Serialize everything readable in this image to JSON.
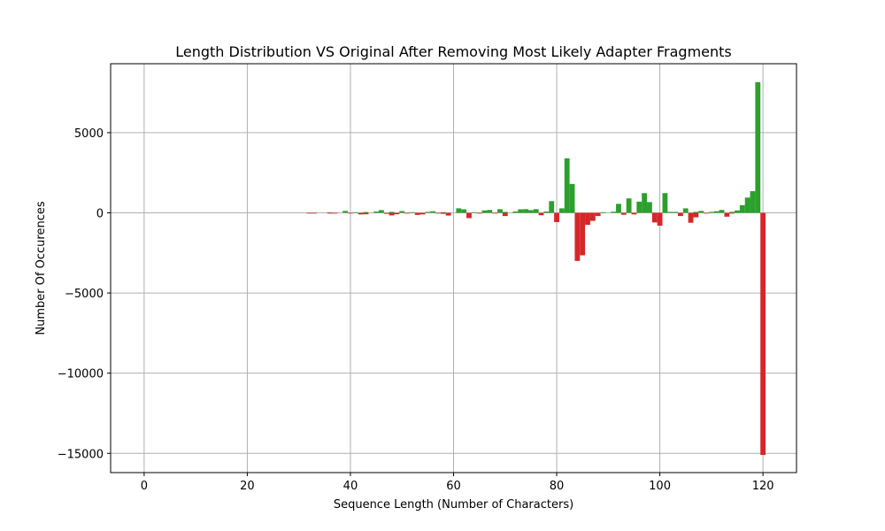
{
  "chart_data": {
    "type": "bar",
    "title": "Length Distribution VS Original After Removing Most Likely Adapter Fragments",
    "xlabel": "Sequence Length (Number of Characters)",
    "ylabel": "Number Of Occurences",
    "xlim": [
      -6.5,
      126.5
    ],
    "ylim": [
      -16200,
      9300
    ],
    "xticks": [
      0,
      20,
      40,
      60,
      80,
      100,
      120
    ],
    "xtick_labels": [
      "0",
      "20",
      "40",
      "60",
      "80",
      "100",
      "120"
    ],
    "yticks": [
      -15000,
      -10000,
      -5000,
      0,
      5000
    ],
    "ytick_labels": [
      "−15000",
      "−10000",
      "−5000",
      "0",
      "5000"
    ],
    "grid": true,
    "bar_width": 1.0,
    "series": [
      {
        "color": "#2ca02c",
        "points": [
          {
            "x": 36,
            "y": 30
          },
          {
            "x": 39,
            "y": 120
          },
          {
            "x": 41,
            "y": 40
          },
          {
            "x": 43,
            "y": 50
          },
          {
            "x": 45,
            "y": 80
          },
          {
            "x": 46,
            "y": 170
          },
          {
            "x": 48,
            "y": 60
          },
          {
            "x": 50,
            "y": 110
          },
          {
            "x": 52,
            "y": 40
          },
          {
            "x": 55,
            "y": 60
          },
          {
            "x": 56,
            "y": 100
          },
          {
            "x": 58,
            "y": 40
          },
          {
            "x": 61,
            "y": 280
          },
          {
            "x": 62,
            "y": 220
          },
          {
            "x": 64,
            "y": 40
          },
          {
            "x": 66,
            "y": 150
          },
          {
            "x": 67,
            "y": 180
          },
          {
            "x": 69,
            "y": 230
          },
          {
            "x": 70,
            "y": 60
          },
          {
            "x": 72,
            "y": 80
          },
          {
            "x": 73,
            "y": 220
          },
          {
            "x": 74,
            "y": 230
          },
          {
            "x": 75,
            "y": 170
          },
          {
            "x": 76,
            "y": 230
          },
          {
            "x": 78,
            "y": 80
          },
          {
            "x": 79,
            "y": 730
          },
          {
            "x": 81,
            "y": 280
          },
          {
            "x": 82,
            "y": 3400
          },
          {
            "x": 83,
            "y": 1800
          },
          {
            "x": 89,
            "y": 40
          },
          {
            "x": 91,
            "y": 70
          },
          {
            "x": 92,
            "y": 560
          },
          {
            "x": 94,
            "y": 900
          },
          {
            "x": 96,
            "y": 700
          },
          {
            "x": 97,
            "y": 1230
          },
          {
            "x": 98,
            "y": 670
          },
          {
            "x": 101,
            "y": 1230
          },
          {
            "x": 102,
            "y": 60
          },
          {
            "x": 103,
            "y": 60
          },
          {
            "x": 105,
            "y": 280
          },
          {
            "x": 107,
            "y": 60
          },
          {
            "x": 108,
            "y": 120
          },
          {
            "x": 110,
            "y": 60
          },
          {
            "x": 111,
            "y": 100
          },
          {
            "x": 112,
            "y": 180
          },
          {
            "x": 114,
            "y": 60
          },
          {
            "x": 115,
            "y": 150
          },
          {
            "x": 116,
            "y": 480
          },
          {
            "x": 117,
            "y": 950
          },
          {
            "x": 118,
            "y": 1350
          },
          {
            "x": 119,
            "y": 8150
          }
        ]
      },
      {
        "color": "#d62728",
        "points": [
          {
            "x": 32,
            "y": -30
          },
          {
            "x": 33,
            "y": -40
          },
          {
            "x": 36,
            "y": -40
          },
          {
            "x": 37,
            "y": -30
          },
          {
            "x": 40,
            "y": -40
          },
          {
            "x": 42,
            "y": -100
          },
          {
            "x": 43,
            "y": -90
          },
          {
            "x": 47,
            "y": -60
          },
          {
            "x": 48,
            "y": -160
          },
          {
            "x": 49,
            "y": -90
          },
          {
            "x": 51,
            "y": -40
          },
          {
            "x": 53,
            "y": -130
          },
          {
            "x": 54,
            "y": -100
          },
          {
            "x": 57,
            "y": -40
          },
          {
            "x": 58,
            "y": -60
          },
          {
            "x": 59,
            "y": -170
          },
          {
            "x": 63,
            "y": -330
          },
          {
            "x": 65,
            "y": -40
          },
          {
            "x": 68,
            "y": -40
          },
          {
            "x": 70,
            "y": -200
          },
          {
            "x": 77,
            "y": -150
          },
          {
            "x": 80,
            "y": -580
          },
          {
            "x": 84,
            "y": -3000
          },
          {
            "x": 85,
            "y": -2650
          },
          {
            "x": 86,
            "y": -750
          },
          {
            "x": 87,
            "y": -500
          },
          {
            "x": 88,
            "y": -200
          },
          {
            "x": 93,
            "y": -120
          },
          {
            "x": 95,
            "y": -100
          },
          {
            "x": 99,
            "y": -600
          },
          {
            "x": 100,
            "y": -800
          },
          {
            "x": 104,
            "y": -200
          },
          {
            "x": 106,
            "y": -620
          },
          {
            "x": 107,
            "y": -280
          },
          {
            "x": 109,
            "y": -30
          },
          {
            "x": 113,
            "y": -240
          },
          {
            "x": 114,
            "y": -40
          },
          {
            "x": 120,
            "y": -15100
          }
        ]
      }
    ]
  }
}
